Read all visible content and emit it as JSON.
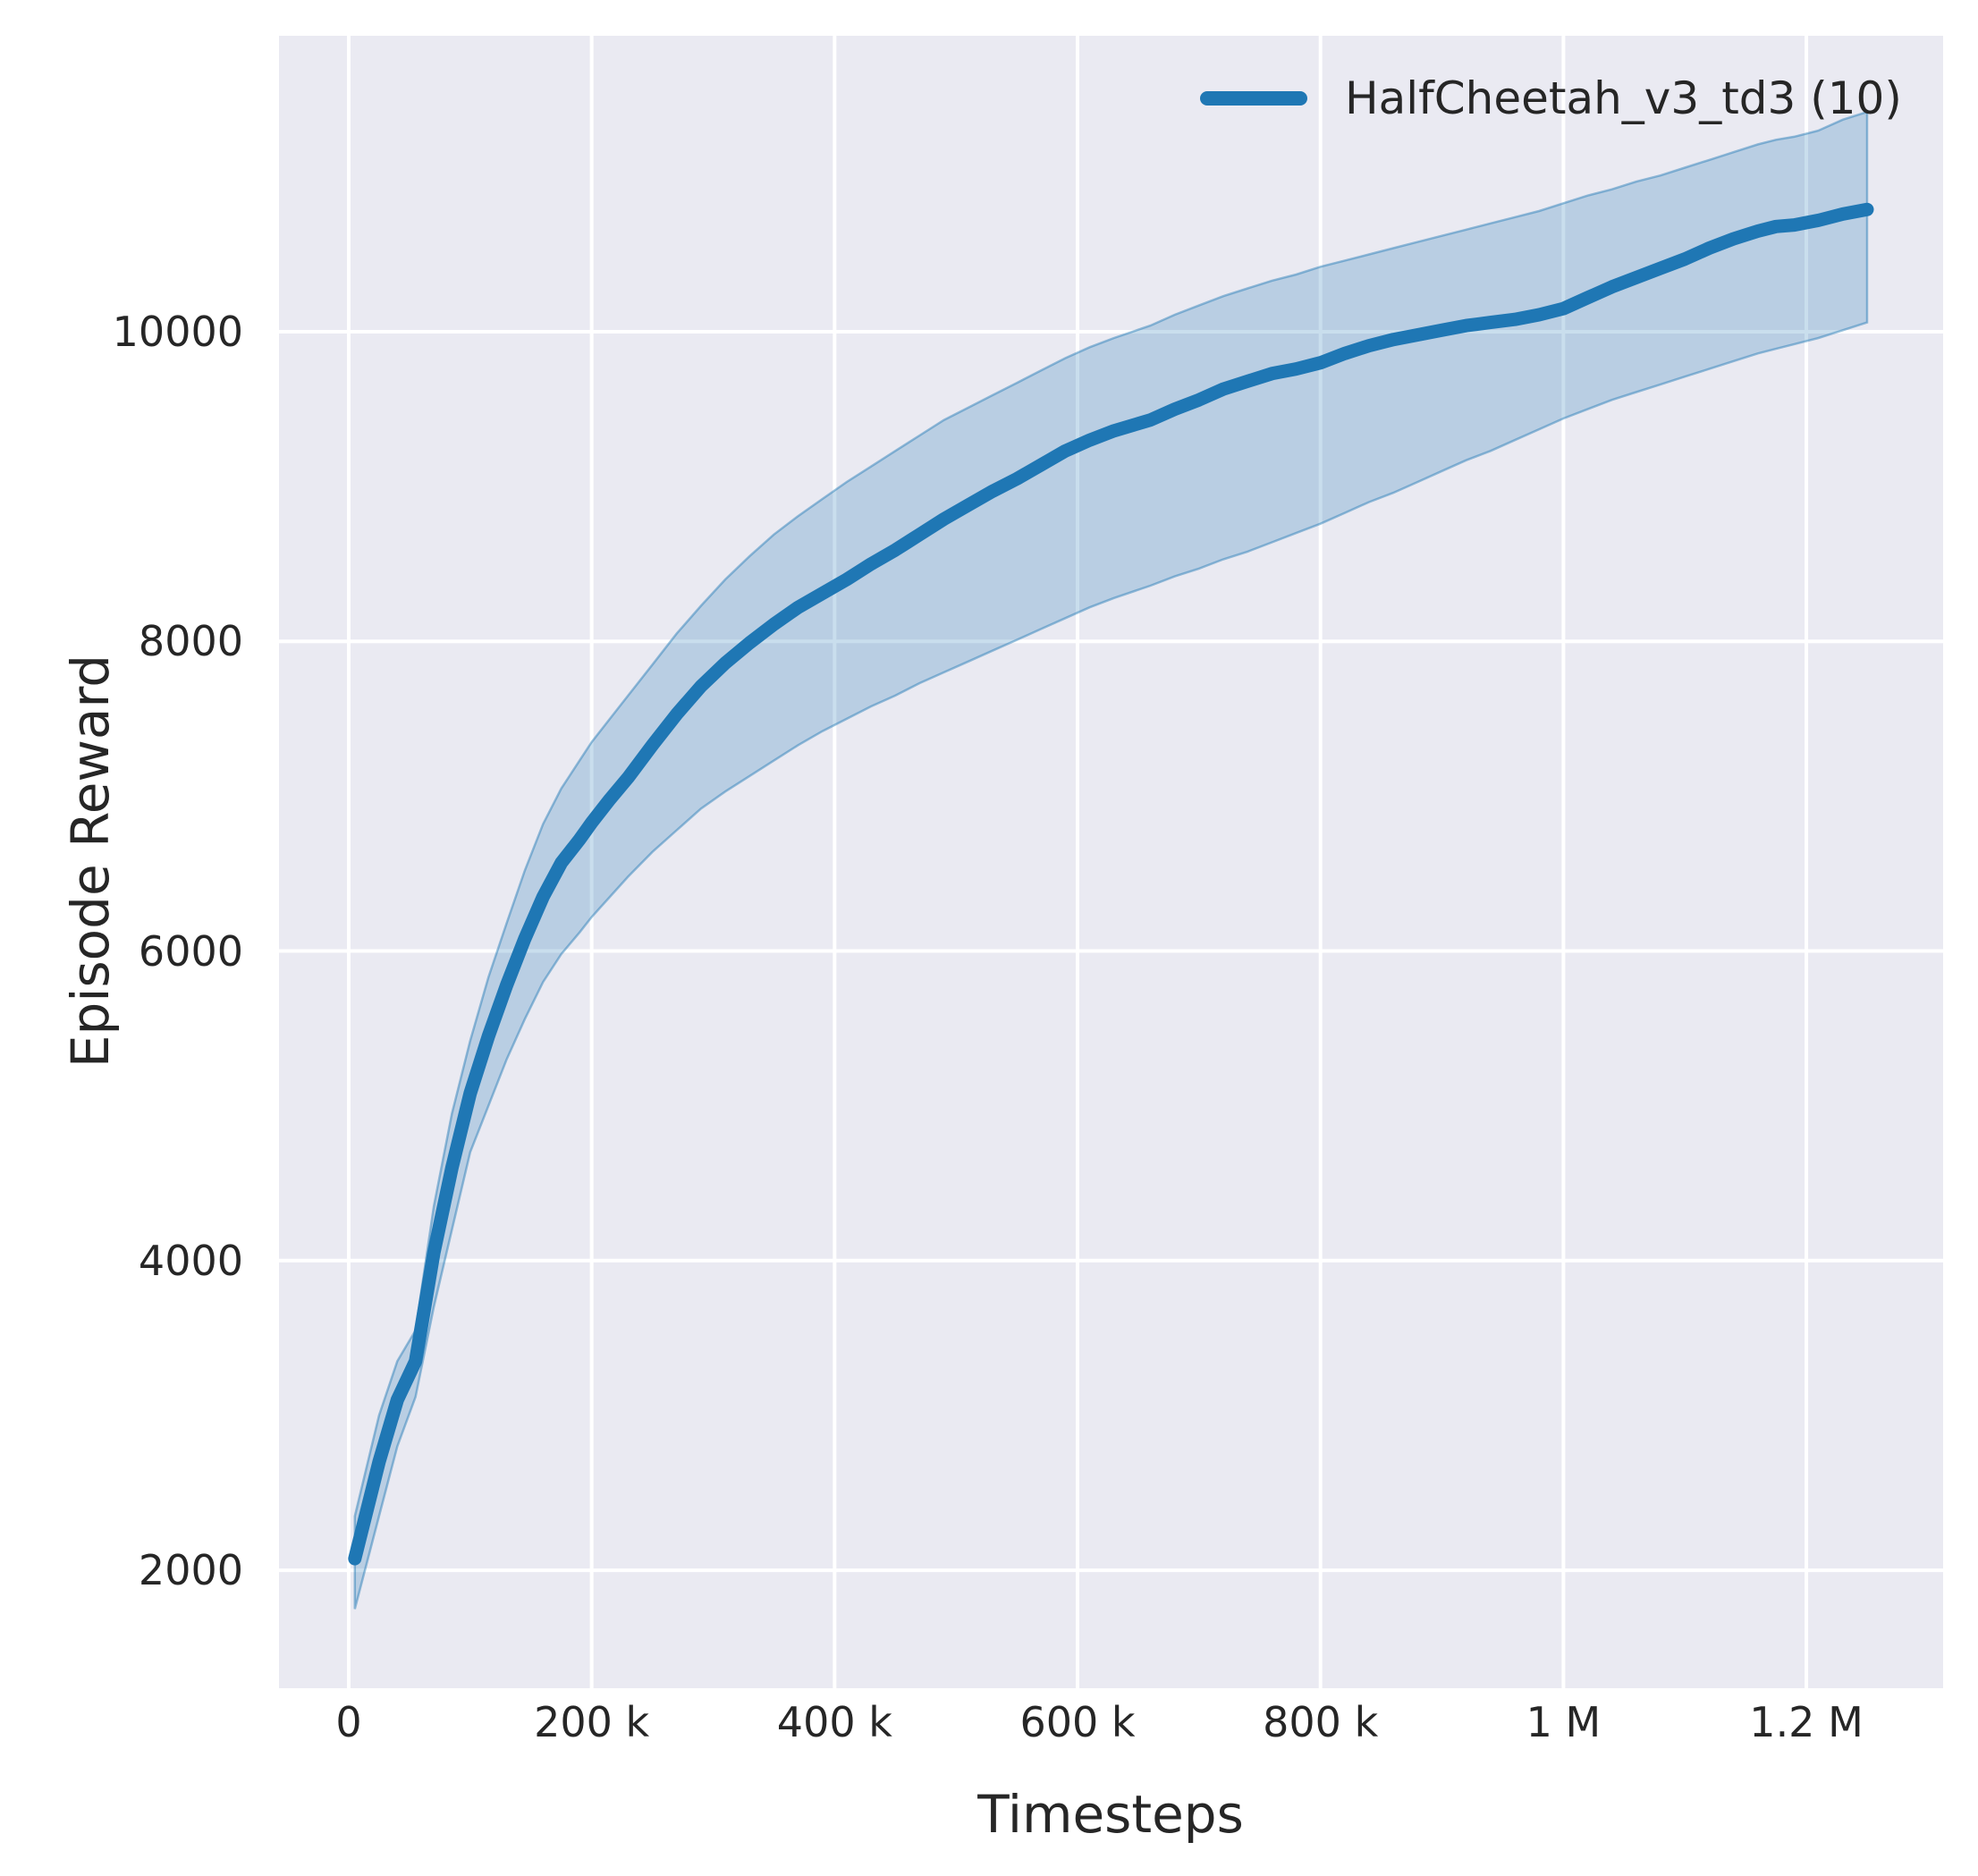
{
  "figure": {
    "type": "matplotlib-seaborn-figure",
    "background": "#ffffff",
    "plot_background": "#eaeaf2",
    "grid_color": "#ffffff",
    "text_color": "#262626"
  },
  "legend": {
    "label": "HalfCheetah_v3_td3 (10)",
    "line_color": "#1f77b4",
    "position": "upper right"
  },
  "chart_data": {
    "type": "line",
    "title": "",
    "xlabel": "Timesteps",
    "ylabel": "Episode Reward",
    "grid": true,
    "xlim": [
      -57400,
      1312600
    ],
    "ylim": [
      1238,
      11912
    ],
    "xticks": {
      "values": [
        0,
        200000,
        400000,
        600000,
        800000,
        1000000,
        1200000
      ],
      "labels": [
        "0",
        "200 k",
        "400 k",
        "600 k",
        "800 k",
        "1 M",
        "1.2 M"
      ]
    },
    "yticks": {
      "values": [
        2000,
        4000,
        6000,
        8000,
        10000
      ],
      "labels": [
        "2000",
        "4000",
        "6000",
        "8000",
        "10000"
      ]
    },
    "series": [
      {
        "name": "HalfCheetah_v3_td3 (10)",
        "color": "#1f77b4",
        "band_alpha": 0.24,
        "band_edge_alpha": 0.45,
        "x": [
          5000,
          25000,
          40000,
          55000,
          70000,
          85000,
          100000,
          115000,
          130000,
          145000,
          160000,
          175000,
          190000,
          200000,
          215000,
          230000,
          250000,
          270000,
          290000,
          310000,
          330000,
          350000,
          370000,
          390000,
          410000,
          430000,
          450000,
          470000,
          490000,
          510000,
          530000,
          550000,
          570000,
          590000,
          610000,
          630000,
          660000,
          680000,
          700000,
          720000,
          740000,
          760000,
          780000,
          800000,
          820000,
          840000,
          860000,
          880000,
          900000,
          920000,
          940000,
          960000,
          980000,
          1000000,
          1020000,
          1040000,
          1060000,
          1080000,
          1100000,
          1120000,
          1140000,
          1160000,
          1175000,
          1190000,
          1210000,
          1230000,
          1250000
        ],
        "mean": [
          2075,
          2700,
          3100,
          3350,
          4050,
          4600,
          5080,
          5450,
          5780,
          6080,
          6350,
          6570,
          6720,
          6830,
          6980,
          7120,
          7330,
          7530,
          7710,
          7860,
          7990,
          8110,
          8220,
          8310,
          8400,
          8500,
          8590,
          8690,
          8790,
          8880,
          8970,
          9050,
          9140,
          9230,
          9300,
          9360,
          9430,
          9500,
          9560,
          9630,
          9680,
          9730,
          9760,
          9800,
          9860,
          9910,
          9950,
          9980,
          10010,
          10040,
          10060,
          10080,
          10110,
          10150,
          10220,
          10290,
          10350,
          10410,
          10470,
          10540,
          10600,
          10650,
          10680,
          10690,
          10720,
          10760,
          10790
        ],
        "lower": [
          1750,
          2350,
          2800,
          3120,
          3700,
          4200,
          4700,
          5000,
          5300,
          5560,
          5800,
          5980,
          6120,
          6220,
          6350,
          6480,
          6640,
          6780,
          6920,
          7030,
          7130,
          7230,
          7330,
          7420,
          7500,
          7580,
          7650,
          7730,
          7800,
          7870,
          7940,
          8010,
          8080,
          8150,
          8220,
          8280,
          8360,
          8420,
          8470,
          8530,
          8580,
          8640,
          8700,
          8760,
          8830,
          8900,
          8960,
          9030,
          9100,
          9170,
          9230,
          9300,
          9370,
          9440,
          9500,
          9560,
          9610,
          9660,
          9710,
          9760,
          9810,
          9860,
          9890,
          9920,
          9960,
          10010,
          10060
        ],
        "upper": [
          2350,
          3000,
          3350,
          3550,
          4350,
          4950,
          5420,
          5830,
          6180,
          6520,
          6820,
          7050,
          7230,
          7350,
          7500,
          7650,
          7850,
          8050,
          8230,
          8400,
          8550,
          8690,
          8810,
          8920,
          9030,
          9130,
          9230,
          9330,
          9430,
          9510,
          9590,
          9670,
          9750,
          9830,
          9900,
          9960,
          10040,
          10110,
          10170,
          10230,
          10280,
          10330,
          10370,
          10420,
          10460,
          10500,
          10540,
          10580,
          10620,
          10660,
          10700,
          10740,
          10780,
          10830,
          10880,
          10920,
          10970,
          11010,
          11060,
          11110,
          11160,
          11210,
          11240,
          11260,
          11300,
          11370,
          11420
        ]
      }
    ],
    "legend_entries": [
      "HalfCheetah_v3_td3 (10)"
    ]
  }
}
